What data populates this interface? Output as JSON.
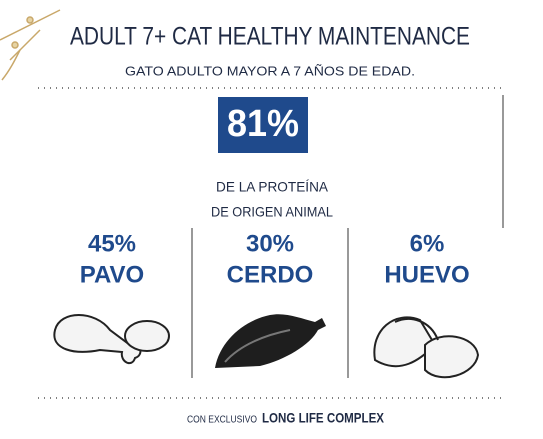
{
  "header": {
    "title": "ADULT 7+ CAT HEALTHY MAINTENANCE",
    "subtitle": "GATO ADULTO MAYOR A 7 AÑOS DE EDAD."
  },
  "highlight": {
    "value": "81%",
    "caption": [
      "DE LA PROTEÍNA",
      "DE ORIGEN ANIMAL"
    ]
  },
  "ingredients": [
    {
      "percent": "45%",
      "name": "PAVO"
    },
    {
      "percent": "30%",
      "name": "CERDO"
    },
    {
      "percent": "6%",
      "name": "HUEVO"
    }
  ],
  "footer": {
    "prefix": "CON EXCLUSIVO",
    "brand": "LONG LIFE COMPLEX"
  }
}
